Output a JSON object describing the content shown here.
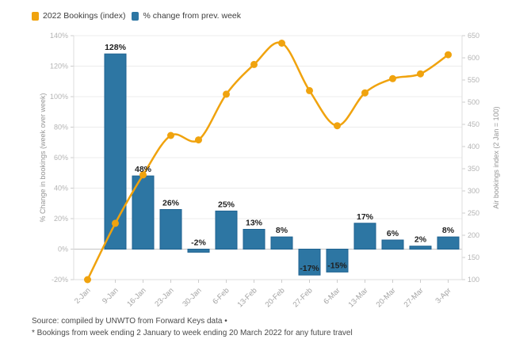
{
  "legend": {
    "items": [
      {
        "label": "2022 Bookings (index)",
        "color": "#f0a30e"
      },
      {
        "label": "% change from prev. week",
        "color": "#2d76a3"
      }
    ]
  },
  "chart_data": {
    "type": "combo",
    "categories": [
      "2-Jan",
      "9-Jan",
      "16-Jan",
      "23-Jan",
      "30-Jan",
      "6-Feb",
      "13-Feb",
      "20-Feb",
      "27-Feb",
      "6-Mar",
      "13-Mar",
      "20-Mar",
      "27-Mar",
      "3-Apr"
    ],
    "series": [
      {
        "name": "2022 Bookings (index)",
        "type": "line",
        "axis": "right",
        "color": "#f0a30e",
        "values": [
          100,
          227,
          336,
          425,
          415,
          518,
          585,
          633,
          526,
          447,
          521,
          553,
          564,
          607
        ]
      },
      {
        "name": "% change from prev. week",
        "type": "bar",
        "axis": "left",
        "color": "#2d76a3",
        "values": [
          null,
          128,
          48,
          26,
          -2,
          25,
          13,
          8,
          -17,
          -15,
          17,
          6,
          2,
          8
        ],
        "labels": [
          "",
          "128%",
          "48%",
          "26%",
          "-2%",
          "25%",
          "13%",
          "8%",
          "-17%",
          "-15%",
          "17%",
          "6%",
          "2%",
          "8%"
        ]
      }
    ],
    "left_axis": {
      "title": "% Change in bookings (week over week)",
      "min": -20,
      "max": 140,
      "step": 20,
      "ticks": [
        "-20%",
        "0%",
        "20%",
        "40%",
        "60%",
        "80%",
        "100%",
        "120%",
        "140%"
      ]
    },
    "right_axis": {
      "title": "Air bookings index (2 Jan = 100)",
      "min": 100,
      "max": 650,
      "step": 50,
      "ticks": [
        "100",
        "150",
        "200",
        "250",
        "300",
        "350",
        "400",
        "450",
        "500",
        "550",
        "600",
        "650"
      ]
    },
    "grid": true,
    "legend_position": "top-left",
    "style": {
      "grid_line": "#ececec",
      "zero_line": "#c4c4c4",
      "axis_line": "#dcdcdc",
      "tick_color": "#cccccc",
      "bar_stroke": "#1e6290"
    }
  },
  "footer": {
    "source": "Source: compiled by UNWTO from Forward Keys data •",
    "note": "* Bookings from week ending 2 January to week ending 20 March 2022 for any future travel"
  }
}
